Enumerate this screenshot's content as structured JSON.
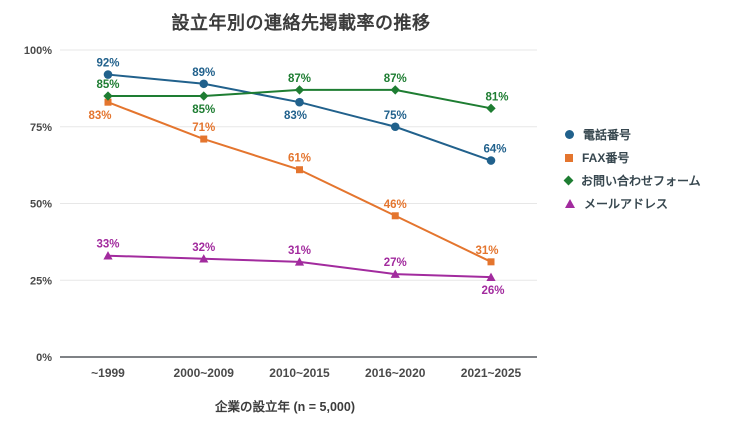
{
  "chart_data": {
    "type": "line",
    "title": "設立年別の連絡先掲載率の推移",
    "xlabel": "企業の設立年 (n = 5,000)",
    "ylabel": "",
    "ylim": [
      0,
      100
    ],
    "grid": "horizontal",
    "legend_position": "right",
    "y_ticks": [
      {
        "value": 100,
        "label": "100%"
      },
      {
        "value": 75,
        "label": "75%"
      },
      {
        "value": 50,
        "label": "50%"
      },
      {
        "value": 25,
        "label": "25%"
      },
      {
        "value": 0,
        "label": "0%"
      }
    ],
    "categories": [
      "~1999",
      "2000~2009",
      "2010~2015",
      "2016~2020",
      "2021~2025"
    ],
    "series": [
      {
        "id": "phone",
        "name": "電話番号",
        "marker": "circle",
        "color": "#21618C",
        "values": [
          92,
          89,
          83,
          75,
          64
        ],
        "labels": [
          "92%",
          "89%",
          "83%",
          "75%",
          "64%"
        ],
        "label_placement": [
          "above",
          "above",
          "below",
          "above",
          "above"
        ],
        "label_dx": [
          0,
          0,
          -4,
          0,
          4
        ]
      },
      {
        "id": "fax",
        "name": "FAX番号",
        "marker": "square",
        "color": "#E4752E",
        "values": [
          83,
          71,
          61,
          46,
          31
        ],
        "labels": [
          "83%",
          "71%",
          "61%",
          "46%",
          "31%"
        ],
        "label_placement": [
          "below",
          "above",
          "above",
          "above",
          "above"
        ],
        "label_dx": [
          -8,
          0,
          0,
          0,
          -4
        ]
      },
      {
        "id": "contact-form",
        "name": "お問い合わせフォーム",
        "marker": "diamond",
        "color": "#1E7D32",
        "values": [
          85,
          85,
          87,
          87,
          81
        ],
        "labels": [
          "85%",
          "85%",
          "87%",
          "87%",
          "81%"
        ],
        "label_placement": [
          "above",
          "below",
          "above",
          "above",
          "above"
        ],
        "label_dx": [
          0,
          0,
          0,
          0,
          6
        ]
      },
      {
        "id": "email",
        "name": "メールアドレス",
        "marker": "triangle",
        "color": "#A22B9E",
        "values": [
          33,
          32,
          31,
          27,
          26
        ],
        "labels": [
          "33%",
          "32%",
          "31%",
          "27%",
          "26%"
        ],
        "label_placement": [
          "above",
          "above",
          "above",
          "above",
          "below"
        ],
        "label_dx": [
          0,
          0,
          0,
          0,
          2
        ]
      }
    ],
    "axis_colors": {
      "grid": "#e7e7e7",
      "baseline": "#55595e",
      "tick_text": "#4a4a4a"
    }
  }
}
